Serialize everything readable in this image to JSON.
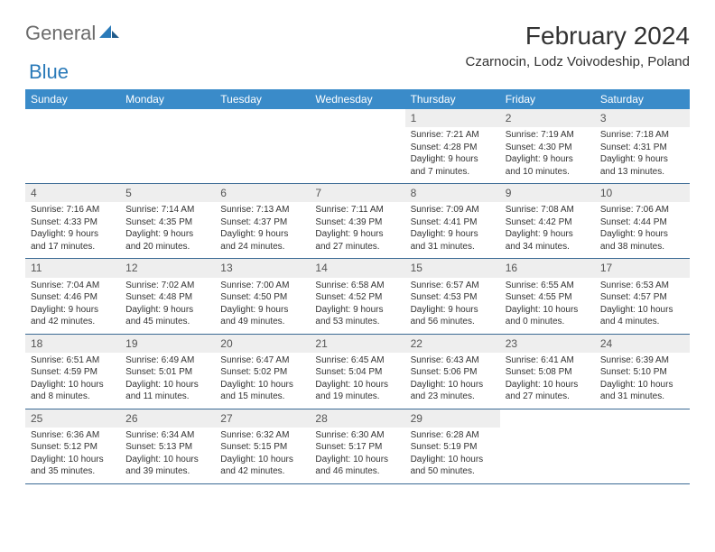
{
  "logo": {
    "word1": "General",
    "word2": "Blue"
  },
  "title": "February 2024",
  "location": "Czarnocin, Lodz Voivodeship, Poland",
  "columns": [
    "Sunday",
    "Monday",
    "Tuesday",
    "Wednesday",
    "Thursday",
    "Friday",
    "Saturday"
  ],
  "colors": {
    "header_bg": "#3a8bc9",
    "header_text": "#ffffff",
    "daynum_bg": "#eeeeee",
    "row_border": "#3a6a94",
    "logo_gray": "#6b6b6b",
    "logo_blue": "#2a7ab9"
  },
  "weeks": [
    [
      null,
      null,
      null,
      null,
      {
        "n": "1",
        "sr": "Sunrise: 7:21 AM",
        "ss": "Sunset: 4:28 PM",
        "dl1": "Daylight: 9 hours",
        "dl2": "and 7 minutes."
      },
      {
        "n": "2",
        "sr": "Sunrise: 7:19 AM",
        "ss": "Sunset: 4:30 PM",
        "dl1": "Daylight: 9 hours",
        "dl2": "and 10 minutes."
      },
      {
        "n": "3",
        "sr": "Sunrise: 7:18 AM",
        "ss": "Sunset: 4:31 PM",
        "dl1": "Daylight: 9 hours",
        "dl2": "and 13 minutes."
      }
    ],
    [
      {
        "n": "4",
        "sr": "Sunrise: 7:16 AM",
        "ss": "Sunset: 4:33 PM",
        "dl1": "Daylight: 9 hours",
        "dl2": "and 17 minutes."
      },
      {
        "n": "5",
        "sr": "Sunrise: 7:14 AM",
        "ss": "Sunset: 4:35 PM",
        "dl1": "Daylight: 9 hours",
        "dl2": "and 20 minutes."
      },
      {
        "n": "6",
        "sr": "Sunrise: 7:13 AM",
        "ss": "Sunset: 4:37 PM",
        "dl1": "Daylight: 9 hours",
        "dl2": "and 24 minutes."
      },
      {
        "n": "7",
        "sr": "Sunrise: 7:11 AM",
        "ss": "Sunset: 4:39 PM",
        "dl1": "Daylight: 9 hours",
        "dl2": "and 27 minutes."
      },
      {
        "n": "8",
        "sr": "Sunrise: 7:09 AM",
        "ss": "Sunset: 4:41 PM",
        "dl1": "Daylight: 9 hours",
        "dl2": "and 31 minutes."
      },
      {
        "n": "9",
        "sr": "Sunrise: 7:08 AM",
        "ss": "Sunset: 4:42 PM",
        "dl1": "Daylight: 9 hours",
        "dl2": "and 34 minutes."
      },
      {
        "n": "10",
        "sr": "Sunrise: 7:06 AM",
        "ss": "Sunset: 4:44 PM",
        "dl1": "Daylight: 9 hours",
        "dl2": "and 38 minutes."
      }
    ],
    [
      {
        "n": "11",
        "sr": "Sunrise: 7:04 AM",
        "ss": "Sunset: 4:46 PM",
        "dl1": "Daylight: 9 hours",
        "dl2": "and 42 minutes."
      },
      {
        "n": "12",
        "sr": "Sunrise: 7:02 AM",
        "ss": "Sunset: 4:48 PM",
        "dl1": "Daylight: 9 hours",
        "dl2": "and 45 minutes."
      },
      {
        "n": "13",
        "sr": "Sunrise: 7:00 AM",
        "ss": "Sunset: 4:50 PM",
        "dl1": "Daylight: 9 hours",
        "dl2": "and 49 minutes."
      },
      {
        "n": "14",
        "sr": "Sunrise: 6:58 AM",
        "ss": "Sunset: 4:52 PM",
        "dl1": "Daylight: 9 hours",
        "dl2": "and 53 minutes."
      },
      {
        "n": "15",
        "sr": "Sunrise: 6:57 AM",
        "ss": "Sunset: 4:53 PM",
        "dl1": "Daylight: 9 hours",
        "dl2": "and 56 minutes."
      },
      {
        "n": "16",
        "sr": "Sunrise: 6:55 AM",
        "ss": "Sunset: 4:55 PM",
        "dl1": "Daylight: 10 hours",
        "dl2": "and 0 minutes."
      },
      {
        "n": "17",
        "sr": "Sunrise: 6:53 AM",
        "ss": "Sunset: 4:57 PM",
        "dl1": "Daylight: 10 hours",
        "dl2": "and 4 minutes."
      }
    ],
    [
      {
        "n": "18",
        "sr": "Sunrise: 6:51 AM",
        "ss": "Sunset: 4:59 PM",
        "dl1": "Daylight: 10 hours",
        "dl2": "and 8 minutes."
      },
      {
        "n": "19",
        "sr": "Sunrise: 6:49 AM",
        "ss": "Sunset: 5:01 PM",
        "dl1": "Daylight: 10 hours",
        "dl2": "and 11 minutes."
      },
      {
        "n": "20",
        "sr": "Sunrise: 6:47 AM",
        "ss": "Sunset: 5:02 PM",
        "dl1": "Daylight: 10 hours",
        "dl2": "and 15 minutes."
      },
      {
        "n": "21",
        "sr": "Sunrise: 6:45 AM",
        "ss": "Sunset: 5:04 PM",
        "dl1": "Daylight: 10 hours",
        "dl2": "and 19 minutes."
      },
      {
        "n": "22",
        "sr": "Sunrise: 6:43 AM",
        "ss": "Sunset: 5:06 PM",
        "dl1": "Daylight: 10 hours",
        "dl2": "and 23 minutes."
      },
      {
        "n": "23",
        "sr": "Sunrise: 6:41 AM",
        "ss": "Sunset: 5:08 PM",
        "dl1": "Daylight: 10 hours",
        "dl2": "and 27 minutes."
      },
      {
        "n": "24",
        "sr": "Sunrise: 6:39 AM",
        "ss": "Sunset: 5:10 PM",
        "dl1": "Daylight: 10 hours",
        "dl2": "and 31 minutes."
      }
    ],
    [
      {
        "n": "25",
        "sr": "Sunrise: 6:36 AM",
        "ss": "Sunset: 5:12 PM",
        "dl1": "Daylight: 10 hours",
        "dl2": "and 35 minutes."
      },
      {
        "n": "26",
        "sr": "Sunrise: 6:34 AM",
        "ss": "Sunset: 5:13 PM",
        "dl1": "Daylight: 10 hours",
        "dl2": "and 39 minutes."
      },
      {
        "n": "27",
        "sr": "Sunrise: 6:32 AM",
        "ss": "Sunset: 5:15 PM",
        "dl1": "Daylight: 10 hours",
        "dl2": "and 42 minutes."
      },
      {
        "n": "28",
        "sr": "Sunrise: 6:30 AM",
        "ss": "Sunset: 5:17 PM",
        "dl1": "Daylight: 10 hours",
        "dl2": "and 46 minutes."
      },
      {
        "n": "29",
        "sr": "Sunrise: 6:28 AM",
        "ss": "Sunset: 5:19 PM",
        "dl1": "Daylight: 10 hours",
        "dl2": "and 50 minutes."
      },
      null,
      null
    ]
  ]
}
